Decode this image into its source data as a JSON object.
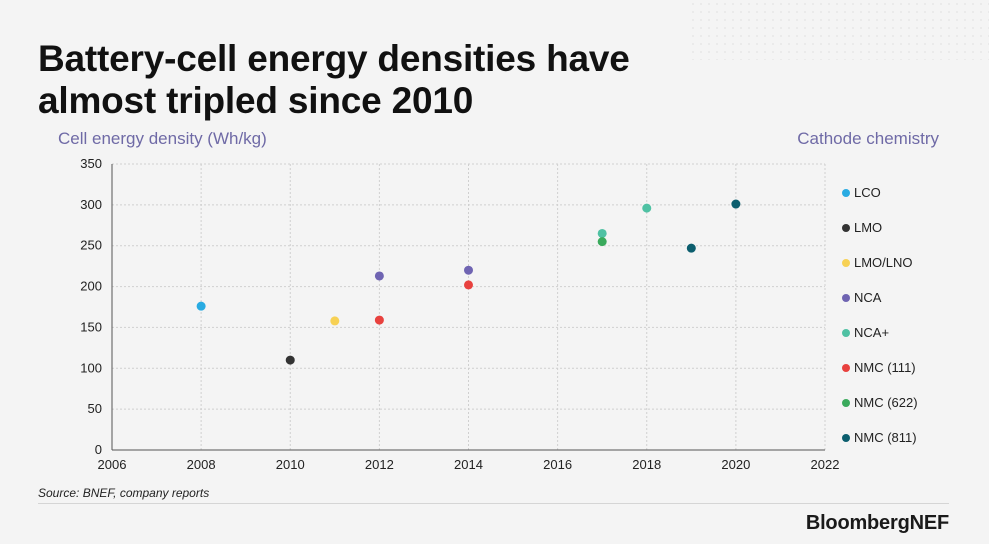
{
  "title_line1": "Battery-cell energy densities have",
  "title_line2": "almost tripled since 2010",
  "y_axis_title": "Cell energy density (Wh/kg)",
  "legend_title": "Cathode chemistry",
  "source": "Source: BNEF, company reports",
  "brand": "BloombergNEF",
  "chart_data": {
    "type": "scatter",
    "title": "Battery-cell energy densities have almost tripled since 2010",
    "xlabel": "",
    "ylabel": "Cell energy density (Wh/kg)",
    "xlim": [
      2006,
      2022
    ],
    "ylim": [
      0,
      350
    ],
    "xticks": [
      2006,
      2008,
      2010,
      2012,
      2014,
      2016,
      2018,
      2020,
      2022
    ],
    "yticks": [
      0,
      50,
      100,
      150,
      200,
      250,
      300,
      350
    ],
    "grid": true,
    "legend_position": "right",
    "series": [
      {
        "name": "LCO",
        "color": "#29abe2",
        "points": [
          {
            "x": 2008,
            "y": 176
          }
        ]
      },
      {
        "name": "LMO",
        "color": "#333333",
        "points": [
          {
            "x": 2010,
            "y": 110
          }
        ]
      },
      {
        "name": "LMO/LNO",
        "color": "#f7d154",
        "points": [
          {
            "x": 2011,
            "y": 158
          }
        ]
      },
      {
        "name": "NCA",
        "color": "#6f64b2",
        "points": [
          {
            "x": 2012,
            "y": 213
          },
          {
            "x": 2014,
            "y": 220
          }
        ]
      },
      {
        "name": "NCA+",
        "color": "#4fc1a3",
        "points": [
          {
            "x": 2017,
            "y": 265
          },
          {
            "x": 2018,
            "y": 296
          }
        ]
      },
      {
        "name": "NMC (111)",
        "color": "#e8413e",
        "points": [
          {
            "x": 2012,
            "y": 159
          },
          {
            "x": 2014,
            "y": 202
          }
        ]
      },
      {
        "name": "NMC (622)",
        "color": "#3aaa5c",
        "points": [
          {
            "x": 2017,
            "y": 255
          }
        ]
      },
      {
        "name": "NMC (811)",
        "color": "#0c5e6e",
        "points": [
          {
            "x": 2019,
            "y": 247
          },
          {
            "x": 2020,
            "y": 301
          }
        ]
      }
    ]
  }
}
